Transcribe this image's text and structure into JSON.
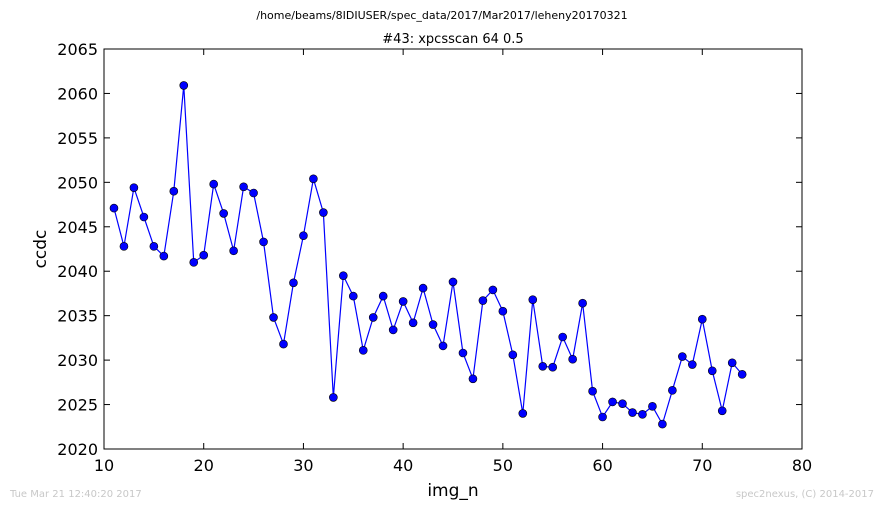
{
  "suptitle": "/home/beams/8IDIUSER/spec_data/2017/Mar2017/leheny20170321",
  "footer": {
    "left": "Tue Mar 21 12:40:20 2017",
    "right": "spec2nexus, (C) 2014-2017"
  },
  "colors": {
    "series": "#0000ff",
    "axes": "#000000",
    "footer": "#c8c8c8"
  },
  "chart_data": {
    "type": "line",
    "title": "#43: xpcsscan 64 0.5",
    "xlabel": "img_n",
    "ylabel": "ccdc",
    "xlim": [
      10,
      80
    ],
    "ylim": [
      2020,
      2065
    ],
    "xticks": [
      10,
      20,
      30,
      40,
      50,
      60,
      70,
      80
    ],
    "yticks": [
      2020,
      2025,
      2030,
      2035,
      2040,
      2045,
      2050,
      2055,
      2060,
      2065
    ],
    "grid": false,
    "marker": "circle",
    "series": [
      {
        "x": [
          11,
          12,
          13,
          14,
          15,
          16,
          17,
          18,
          19,
          20,
          21,
          22,
          23,
          24,
          25,
          26,
          27,
          28,
          29,
          30,
          31,
          32,
          33,
          34,
          35,
          36,
          37,
          38,
          39,
          40,
          41,
          42,
          43,
          44,
          45,
          46,
          47,
          48,
          49,
          50,
          51,
          52,
          53,
          54,
          55,
          56,
          57,
          58,
          59,
          60,
          61,
          62,
          63,
          64,
          65,
          66,
          67,
          68,
          69,
          70,
          71,
          72,
          73,
          74
        ],
        "values": [
          2047.1,
          2042.8,
          2049.4,
          2046.1,
          2042.8,
          2041.7,
          2049.0,
          2060.9,
          2041.0,
          2041.8,
          2049.8,
          2046.5,
          2042.3,
          2049.5,
          2048.8,
          2043.3,
          2034.8,
          2031.8,
          2038.7,
          2044.0,
          2050.4,
          2046.6,
          2025.8,
          2039.5,
          2037.2,
          2031.1,
          2034.8,
          2037.2,
          2033.4,
          2036.6,
          2034.2,
          2038.1,
          2034.0,
          2031.6,
          2038.8,
          2030.8,
          2027.9,
          2036.7,
          2037.9,
          2035.5,
          2030.6,
          2024.0,
          2036.8,
          2029.3,
          2029.2,
          2032.6,
          2030.1,
          2036.4,
          2026.5,
          2023.6,
          2025.3,
          2025.1,
          2024.1,
          2023.9,
          2024.8,
          2022.8,
          2026.6,
          2030.4,
          2029.5,
          2034.6,
          2028.8,
          2024.3,
          2029.7,
          2028.4
        ]
      }
    ]
  }
}
